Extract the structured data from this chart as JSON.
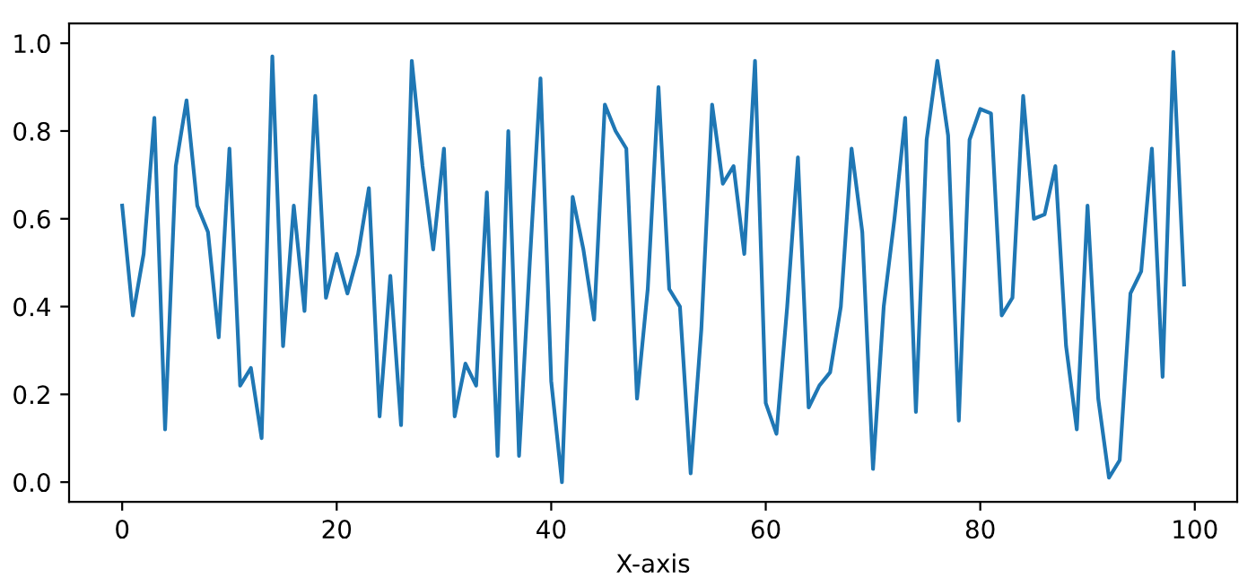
{
  "chart_data": {
    "type": "line",
    "xlabel": "X-axis",
    "x": [
      0,
      1,
      2,
      3,
      4,
      5,
      6,
      7,
      8,
      9,
      10,
      11,
      12,
      13,
      14,
      15,
      16,
      17,
      18,
      19,
      20,
      21,
      22,
      23,
      24,
      25,
      26,
      27,
      28,
      29,
      30,
      31,
      32,
      33,
      34,
      35,
      36,
      37,
      38,
      39,
      40,
      41,
      42,
      43,
      44,
      45,
      46,
      47,
      48,
      49,
      50,
      51,
      52,
      53,
      54,
      55,
      56,
      57,
      58,
      59,
      60,
      61,
      62,
      63,
      64,
      65,
      66,
      67,
      68,
      69,
      70,
      71,
      72,
      73,
      74,
      75,
      76,
      77,
      78,
      79,
      80,
      81,
      82,
      83,
      84,
      85,
      86,
      87,
      88,
      89,
      90,
      91,
      92,
      93,
      94,
      95,
      96,
      97,
      98,
      99
    ],
    "series": [
      {
        "color": "#1f77b4",
        "values": [
          0.63,
          0.38,
          0.52,
          0.83,
          0.12,
          0.72,
          0.87,
          0.63,
          0.57,
          0.33,
          0.76,
          0.22,
          0.26,
          0.1,
          0.97,
          0.31,
          0.63,
          0.39,
          0.88,
          0.42,
          0.52,
          0.43,
          0.52,
          0.67,
          0.15,
          0.47,
          0.13,
          0.96,
          0.72,
          0.53,
          0.76,
          0.15,
          0.27,
          0.22,
          0.66,
          0.06,
          0.8,
          0.06,
          0.5,
          0.92,
          0.23,
          0.0,
          0.65,
          0.53,
          0.37,
          0.86,
          0.8,
          0.76,
          0.19,
          0.44,
          0.9,
          0.44,
          0.4,
          0.02,
          0.35,
          0.86,
          0.68,
          0.72,
          0.52,
          0.96,
          0.18,
          0.11,
          0.4,
          0.74,
          0.17,
          0.22,
          0.25,
          0.4,
          0.76,
          0.57,
          0.03,
          0.4,
          0.6,
          0.83,
          0.16,
          0.78,
          0.96,
          0.79,
          0.14,
          0.78,
          0.85,
          0.84,
          0.38,
          0.42,
          0.88,
          0.6,
          0.61,
          0.72,
          0.31,
          0.12,
          0.63,
          0.19,
          0.01,
          0.05,
          0.43,
          0.48,
          0.76,
          0.24,
          0.98,
          0.45
        ]
      }
    ],
    "xlim": [
      -4.95,
      103.95
    ],
    "ylim": [
      -0.045,
      1.045
    ],
    "xticks": [
      0,
      20,
      40,
      60,
      80,
      100
    ],
    "yticks": [
      {
        "value": 0,
        "label": "0.0"
      },
      {
        "value": 0.2,
        "label": "0.2"
      },
      {
        "value": 0.4,
        "label": "0.4"
      },
      {
        "value": 0.6,
        "label": "0.6"
      },
      {
        "value": 0.8,
        "label": "0.8"
      },
      {
        "value": 1,
        "label": "1.0"
      }
    ],
    "grid": false,
    "legend": false,
    "marker": "none",
    "line_style": "solid"
  }
}
